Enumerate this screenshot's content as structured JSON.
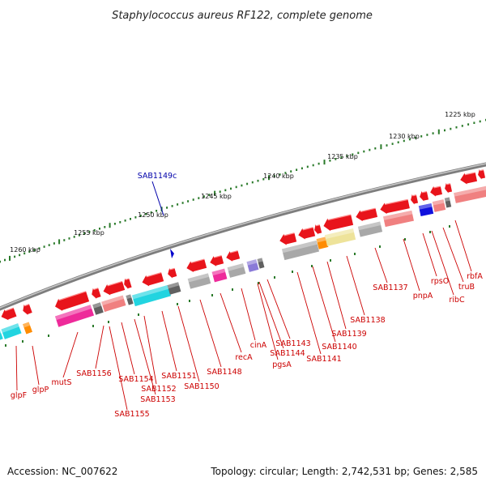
{
  "title": "Staphylococcus aureus RF122, complete genome",
  "footer": {
    "accession": "Accession: NC_007622",
    "summary": "Topology: circular; Length: 2,742,531 bp; Genes: 2,585"
  },
  "highlight": {
    "label": "SAB1149c",
    "color": "#0000aa"
  },
  "scale_labels": [
    "1225 kbp",
    "1230 kbp",
    "1235 kbp",
    "1240 kbp",
    "1245 kbp",
    "1250 kbp",
    "1255 kbp",
    "1260 kbp"
  ],
  "gene_labels": [
    "glpF",
    "glpP",
    "mutS",
    "SAB1156",
    "SAB1155",
    "SAB1154",
    "SAB1153",
    "SAB1152",
    "SAB1151",
    "SAB1150",
    "SAB1148",
    "recA",
    "cinA",
    "SAB1144",
    "SAB1143",
    "pgsA",
    "SAB1141",
    "SAB1140",
    "SAB1139",
    "SAB1138",
    "SAB1137",
    "pnpA",
    "rpsO",
    "ribC",
    "truB",
    "rbfA"
  ],
  "colors": {
    "arrow": "#e8141b",
    "backbone": "#888888",
    "scale": "#2a7a2a",
    "label": "#cc0000",
    "cyan": "#22d4e0",
    "magenta": "#ee2a9a",
    "salmon": "#f08080",
    "gray": "#a8a8a8",
    "darkgray": "#606060",
    "orange": "#ff8c00",
    "khaki": "#eee39a",
    "blue": "#1010dd",
    "violet": "#8a7ad8"
  }
}
